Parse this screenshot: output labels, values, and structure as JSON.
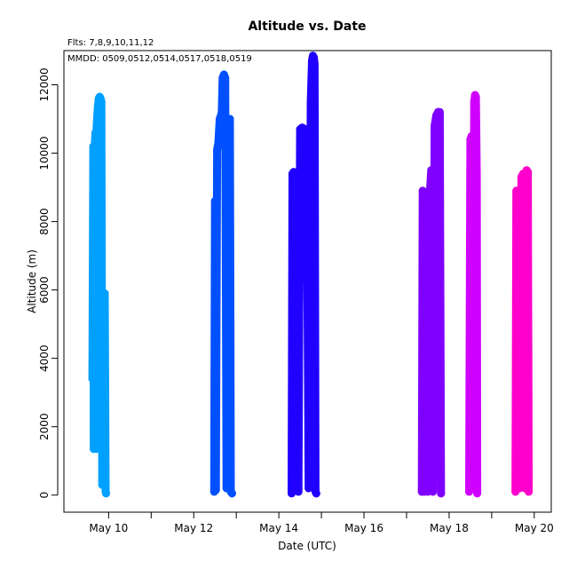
{
  "chart_data": {
    "type": "scatter",
    "title": "Altitude  vs. Date",
    "subtitle": "Flts: 7,8,9,10,11,12",
    "annotation": "MMDD: 0509,0512,0514,0517,0518,0519",
    "xlabel": "Date (UTC)",
    "ylabel": "Altitude (m)",
    "x_unit": "day of May 2014",
    "xlim": [
      8.95,
      20.4
    ],
    "ylim": [
      -500,
      13000
    ],
    "x_tick_values": [
      10,
      11,
      12,
      13,
      14,
      15,
      16,
      17,
      18,
      19,
      20
    ],
    "x_tick_labels": [
      "May 10",
      "",
      "May 12",
      "",
      "May 14",
      "",
      "May 16",
      "",
      "May 18",
      "",
      "May 20"
    ],
    "y_ticks": [
      0,
      2000,
      4000,
      6000,
      8000,
      10000,
      12000
    ],
    "grid": false,
    "legend": "none",
    "series": [
      {
        "color": "#00a0ff",
        "x": [
          9.62,
          9.64,
          9.65,
          9.67,
          9.69,
          9.71,
          9.72,
          9.74,
          9.75,
          9.77,
          9.79,
          9.81,
          9.83,
          9.85,
          9.87,
          9.89,
          9.91,
          9.93,
          9.94
        ],
        "y": [
          3400,
          10200,
          1350,
          10100,
          10600,
          1350,
          10800,
          11200,
          11400,
          11600,
          11650,
          11600,
          11500,
          300,
          5900,
          3000,
          5900,
          100,
          50
        ]
      },
      {
        "color": "#0050ff",
        "x": [
          12.48,
          12.5,
          12.52,
          12.55,
          12.58,
          12.61,
          12.64,
          12.66,
          12.68,
          12.71,
          12.74,
          12.77,
          12.8,
          12.83,
          12.85,
          12.87,
          12.9
        ],
        "y": [
          100,
          8600,
          150,
          10100,
          10300,
          11000,
          11100,
          11200,
          12200,
          12300,
          12200,
          200,
          11000,
          200,
          11000,
          100,
          50
        ]
      },
      {
        "color": "#2000ff",
        "x": [
          14.3,
          14.32,
          14.35,
          14.38,
          14.42,
          14.46,
          14.5,
          14.55,
          14.6,
          14.65,
          14.7,
          14.75,
          14.78,
          14.8,
          14.82,
          14.84,
          14.86,
          14.88
        ],
        "y": [
          50,
          9400,
          9450,
          200,
          9400,
          100,
          10700,
          10750,
          10700,
          10700,
          200,
          11500,
          12700,
          12850,
          12800,
          12600,
          100,
          50
        ]
      },
      {
        "color": "#8000ff",
        "x": [
          17.36,
          17.38,
          17.42,
          17.46,
          17.5,
          17.54,
          17.58,
          17.62,
          17.66,
          17.7,
          17.74,
          17.78,
          17.81
        ],
        "y": [
          100,
          8900,
          100,
          8200,
          100,
          8700,
          9500,
          100,
          10800,
          11100,
          11200,
          11200,
          50
        ]
      },
      {
        "color": "#d000ff",
        "x": [
          18.47,
          18.5,
          18.53,
          18.56,
          18.59,
          18.61,
          18.63,
          18.65,
          18.66
        ],
        "y": [
          100,
          10400,
          10500,
          200,
          11500,
          11700,
          11650,
          9300,
          50
        ]
      },
      {
        "color": "#ff00cc",
        "x": [
          19.56,
          19.58,
          19.62,
          19.66,
          19.7,
          19.74,
          19.78,
          19.82,
          19.85,
          19.87
        ],
        "y": [
          100,
          8900,
          8800,
          200,
          9300,
          9400,
          200,
          9500,
          9450,
          100
        ]
      }
    ]
  }
}
